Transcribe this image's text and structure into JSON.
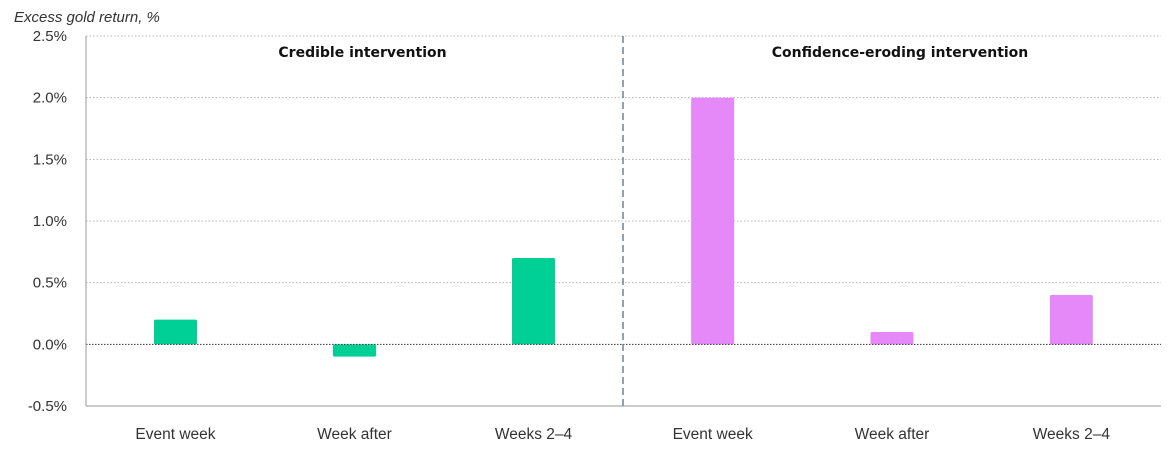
{
  "chart_data": {
    "type": "bar",
    "ylabel": "Excess gold return, %",
    "ylim": [
      -0.5,
      2.5
    ],
    "yticks": [
      2.5,
      2.0,
      1.5,
      1.0,
      0.5,
      0.0,
      -0.5
    ],
    "ytick_labels": [
      "2.5%",
      "2.0%",
      "1.5%",
      "1.0%",
      "0.5%",
      "0.0%",
      "-0.5%"
    ],
    "grid": true,
    "panels": [
      {
        "title": "Credible intervention",
        "color": "#00d095",
        "categories": [
          "Event week",
          "Week after",
          "Weeks 2–4"
        ],
        "values": [
          0.2,
          -0.1,
          0.7
        ]
      },
      {
        "title": "Confidence-eroding intervention",
        "color": "#e489f7",
        "categories": [
          "Event week",
          "Week after",
          "Weeks 2–4"
        ],
        "values": [
          2.0,
          0.1,
          0.4
        ]
      }
    ]
  }
}
